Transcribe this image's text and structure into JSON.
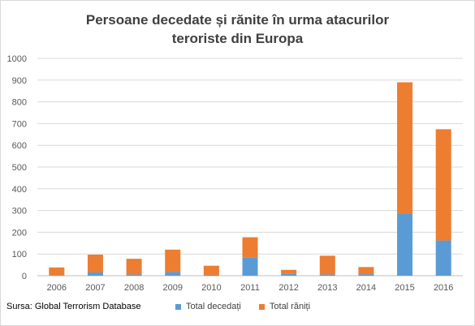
{
  "chart_data": {
    "type": "bar",
    "stacked": true,
    "title_line1": "Persoane decedate și rănite în urma atacurilor",
    "title_line2": "teroriste din Europa",
    "categories": [
      "2006",
      "2007",
      "2008",
      "2009",
      "2010",
      "2011",
      "2012",
      "2013",
      "2014",
      "2015",
      "2016"
    ],
    "series": [
      {
        "name": "Total decedați",
        "color": "#5b9bd5",
        "values": [
          3,
          15,
          6,
          17,
          4,
          85,
          10,
          6,
          7,
          287,
          162
        ]
      },
      {
        "name": "Total răniți",
        "color": "#ed7d31",
        "values": [
          35,
          82,
          72,
          103,
          42,
          92,
          17,
          86,
          33,
          603,
          512
        ]
      }
    ],
    "ylim": [
      0,
      1000
    ],
    "yticks": [
      0,
      100,
      200,
      300,
      400,
      500,
      600,
      700,
      800,
      900,
      1000
    ],
    "grid": true,
    "legend": "bottom",
    "source": "Sursa: Global Terrorism Database"
  }
}
